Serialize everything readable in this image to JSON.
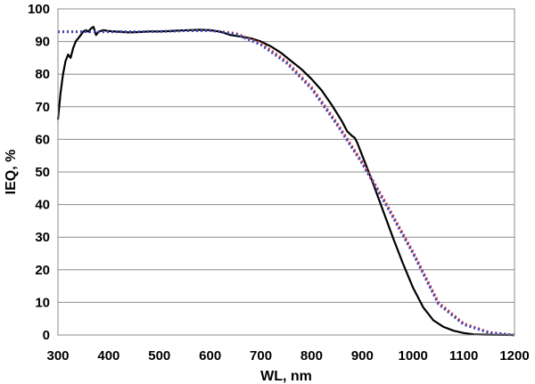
{
  "chart_data": {
    "type": "line",
    "title": "",
    "xlabel": "WL, nm",
    "ylabel": "IEQ, %",
    "xlim": [
      300,
      1200
    ],
    "ylim": [
      0,
      100
    ],
    "xticks": [
      300,
      400,
      500,
      600,
      700,
      800,
      900,
      1000,
      1100,
      1200
    ],
    "yticks": [
      0,
      10,
      20,
      30,
      40,
      50,
      60,
      70,
      80,
      90,
      100
    ],
    "grid": "horizontal",
    "legend": "none",
    "series": [
      {
        "color": "#000000",
        "style": "solid",
        "x": [
          300,
          305,
          310,
          315,
          320,
          325,
          330,
          335,
          340,
          345,
          350,
          355,
          360,
          365,
          370,
          375,
          380,
          390,
          400,
          420,
          440,
          460,
          480,
          500,
          520,
          540,
          560,
          580,
          600,
          620,
          640,
          660,
          680,
          700,
          720,
          740,
          760,
          780,
          800,
          820,
          840,
          860,
          870,
          880,
          885,
          890,
          900,
          920,
          940,
          960,
          980,
          1000,
          1020,
          1040,
          1060,
          1080,
          1100,
          1120,
          1140,
          1160,
          1180,
          1200
        ],
        "y": [
          66,
          74,
          80,
          84,
          86,
          85,
          88,
          90,
          91,
          92,
          93,
          93.5,
          93,
          94,
          94.5,
          92,
          93,
          93.5,
          93.2,
          93,
          92.8,
          92.9,
          93.1,
          93.1,
          93.2,
          93.4,
          93.5,
          93.6,
          93.5,
          93,
          92,
          91.5,
          91,
          90,
          88.5,
          86.5,
          84,
          81.5,
          78.5,
          75,
          70.5,
          65.5,
          62.5,
          61,
          60.5,
          59,
          55,
          47,
          38.5,
          30,
          22,
          14.5,
          8.5,
          4.5,
          2.5,
          1.3,
          0.6,
          0.2,
          0.1,
          0.05,
          0.02,
          0
        ]
      },
      {
        "color": "#e23b3b",
        "style": "dotted",
        "x": [
          300,
          350,
          400,
          450,
          500,
          550,
          600,
          650,
          700,
          750,
          800,
          850,
          900,
          950,
          1000,
          1050,
          1100,
          1150,
          1200
        ],
        "y": [
          93,
          93,
          93,
          93,
          93.1,
          93.3,
          93.4,
          92.5,
          89.5,
          84,
          76,
          65,
          53,
          39.5,
          25.5,
          10,
          3.5,
          0.8,
          0
        ]
      },
      {
        "color": "#3a46b8",
        "style": "dotted",
        "x": [
          300,
          350,
          400,
          450,
          500,
          550,
          600,
          650,
          700,
          750,
          800,
          850,
          900,
          950,
          1000,
          1050,
          1100,
          1150,
          1200
        ],
        "y": [
          93,
          93,
          93,
          93,
          93.1,
          93.3,
          93.4,
          92.3,
          89,
          83.5,
          75.5,
          64.5,
          52.5,
          39,
          25,
          9.5,
          3.2,
          0.7,
          0
        ]
      }
    ]
  }
}
